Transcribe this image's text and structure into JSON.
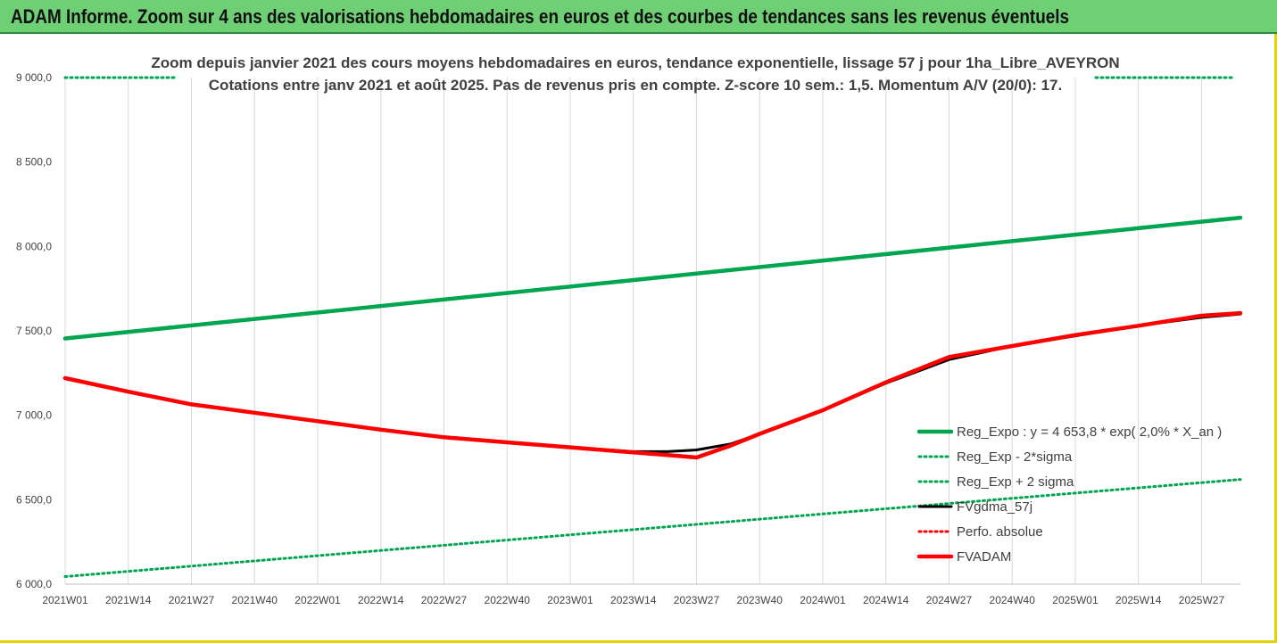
{
  "banner": {
    "title": "ADAM Informe. Zoom sur 4 ans des valorisations hebdomadaires en euros et des courbes de tendances sans les revenus éventuels"
  },
  "colors": {
    "banner_bg": "#6fcf75",
    "regression": "#00a550",
    "fvgdma": "#000000",
    "perfo": "#ff0000",
    "fvadam": "#ff0000",
    "frame": "#e6d200"
  },
  "chart_data": {
    "type": "line",
    "title": [
      "Zoom depuis janvier 2021 des cours moyens hebdomadaires en euros, tendance exponentielle, lissage 57 j pour 1ha_Libre_AVEYRON",
      "Cotations entre janv 2021 et août 2025. Pas de revenus pris en compte. Z-score 10 sem.: 1,5. Momentum A/V (20/0): 17."
    ],
    "xlabel": "",
    "ylabel": "",
    "ylim": [
      6000,
      9000
    ],
    "yticks": [
      "9 000,0",
      "8 500,0",
      "8 000,0",
      "7 500,0",
      "7 000,0",
      "6 500,0",
      "6 000,0"
    ],
    "ytick_values": [
      9000,
      8500,
      8000,
      7500,
      7000,
      6500,
      6000
    ],
    "x_categories": [
      "2021W01",
      "2021W14",
      "2021W27",
      "2021W40",
      "2022W01",
      "2022W14",
      "2022W27",
      "2022W40",
      "2023W01",
      "2023W14",
      "2023W27",
      "2023W40",
      "2024W01",
      "2024W14",
      "2024W27",
      "2024W40",
      "2025W01",
      "2025W14",
      "2025W27"
    ],
    "x_range_weeks": [
      0,
      242
    ],
    "grid": "vertical",
    "legend_position": "bottom-right",
    "series": [
      {
        "name": "Reg_Expo : y = 4 653,8 * exp( 2,0% *  X_an )",
        "style": "solid-thick",
        "color": "#00a550",
        "x": [
          0,
          242
        ],
        "y": [
          7455,
          8170
        ]
      },
      {
        "name": "Reg_Exp - 2*sigma",
        "style": "dotted",
        "color": "#00a550",
        "x": [
          0,
          242
        ],
        "y": [
          9000,
          9000
        ]
      },
      {
        "name": "Reg_Exp + 2 sigma",
        "style": "dotted",
        "color": "#00a550",
        "x": [
          0,
          242
        ],
        "y": [
          6045,
          6620
        ]
      },
      {
        "name": "FVgdma_57j",
        "style": "solid",
        "color": "#000000",
        "x": [
          0,
          13,
          26,
          39,
          52,
          65,
          78,
          91,
          104,
          117,
          124,
          130,
          137,
          143,
          156,
          169,
          182,
          195,
          208,
          221,
          234,
          242
        ],
        "y": [
          7220,
          7140,
          7065,
          7015,
          6965,
          6915,
          6870,
          6840,
          6810,
          6785,
          6785,
          6795,
          6830,
          6890,
          7030,
          7190,
          7330,
          7410,
          7470,
          7530,
          7580,
          7600
        ]
      },
      {
        "name": "Perfo. absolue",
        "style": "dotted",
        "color": "#ff0000",
        "x": [],
        "y": []
      },
      {
        "name": "FVADAM",
        "style": "solid-thick",
        "color": "#ff0000",
        "x": [
          0,
          13,
          26,
          39,
          52,
          65,
          78,
          91,
          104,
          117,
          124,
          130,
          137,
          143,
          156,
          169,
          182,
          195,
          208,
          221,
          234,
          242
        ],
        "y": [
          7220,
          7140,
          7065,
          7015,
          6965,
          6915,
          6870,
          6840,
          6810,
          6780,
          6765,
          6750,
          6820,
          6890,
          7030,
          7195,
          7345,
          7410,
          7475,
          7530,
          7590,
          7605
        ]
      }
    ]
  }
}
